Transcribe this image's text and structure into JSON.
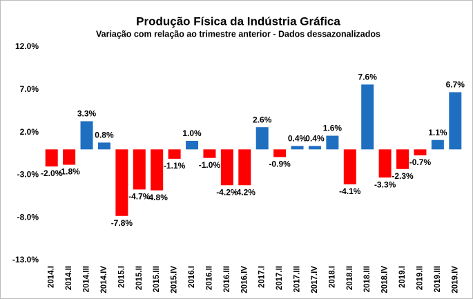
{
  "chart_data": {
    "type": "bar",
    "title": "Produção Física da Indústria Gráfica",
    "subtitle": "Variação com relação ao trimestre anterior - Dados dessazonalizados",
    "categories": [
      "2014.I",
      "2014.II",
      "2014.III",
      "2014.IV",
      "2015.I",
      "2015.II",
      "2015.III",
      "2015.IV",
      "2016.I",
      "2016.II",
      "2016.III",
      "2016.IV",
      "2017.I",
      "2017.II",
      "2017.III",
      "2017.IV",
      "2018.I",
      "2018.II",
      "2018.III",
      "2018.IV",
      "2019.I",
      "2019.II",
      "2019.III",
      "2019.IV"
    ],
    "values": [
      -2.0,
      -1.8,
      3.3,
      0.8,
      -7.8,
      -4.7,
      -4.8,
      -1.1,
      1.0,
      -1.0,
      -4.2,
      -4.2,
      2.6,
      -0.9,
      0.4,
      0.4,
      1.6,
      -4.1,
      7.6,
      -3.3,
      -2.3,
      -0.7,
      1.1,
      6.7
    ],
    "value_labels": [
      "-2.0%",
      "-1.8%",
      "3.3%",
      "0.8%",
      "-7.8%",
      "-4.7%",
      "-4.8%",
      "-1.1%",
      "1.0%",
      "-1.0%",
      "-4.2%",
      "-4.2%",
      "2.6%",
      "-0.9%",
      "0.4%",
      "0.4%",
      "1.6%",
      "-4.1%",
      "7.6%",
      "-3.3%",
      "-2.3%",
      "-0.7%",
      "1.1%",
      "6.7%"
    ],
    "positive_color": "#1f6fc1",
    "negative_color": "#ff0000",
    "ylim": [
      -13,
      12
    ],
    "yticks": [
      {
        "value": 12,
        "label": "12.0%"
      },
      {
        "value": 7,
        "label": "7.0%"
      },
      {
        "value": 2,
        "label": "2.0%"
      },
      {
        "value": -3,
        "label": "-3.0%"
      },
      {
        "value": -8,
        "label": "-8.0%"
      },
      {
        "value": -13,
        "label": "-13.0%"
      }
    ],
    "grid": false
  }
}
